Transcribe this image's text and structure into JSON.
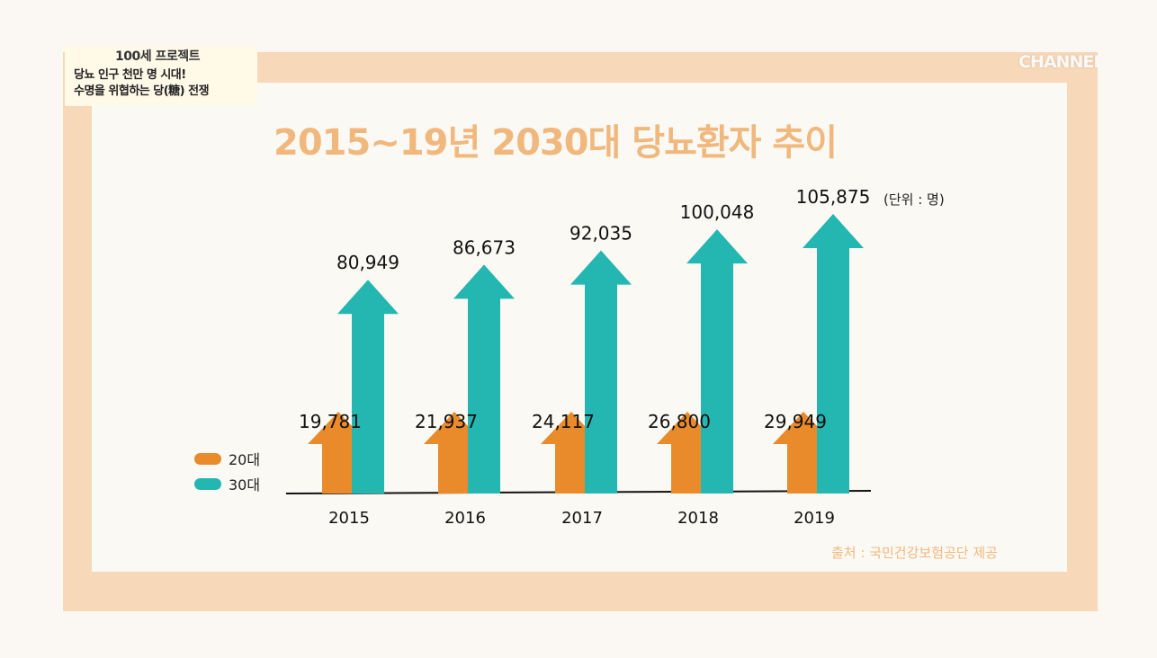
{
  "caption": {
    "program": "100세 프로젝트",
    "line1": "당뇨 인구 천만 명 시대!",
    "line2": "수명을 위협하는 당(糖) 전쟁"
  },
  "logo": "CHANNEL A",
  "colors": {
    "series_20s": "#e98a2b",
    "series_30s": "#24b6b1",
    "title": "#f1b87e",
    "frame": "#f7d8b8"
  },
  "unit_label": "(단위 : 명)",
  "source_label": "출처 : 국민건강보험공단 제공",
  "chart_data": {
    "type": "bar",
    "title": "2015~19년 2030대 당뇨환자 추이",
    "categories": [
      "2015",
      "2016",
      "2017",
      "2018",
      "2019"
    ],
    "series": [
      {
        "name": "20대",
        "values": [
          19781,
          21937,
          24117,
          26800,
          29949
        ]
      },
      {
        "name": "30대",
        "values": [
          80949,
          86673,
          92035,
          100048,
          105875
        ]
      }
    ],
    "value_labels": {
      "20대": [
        "19,781",
        "21,937",
        "24,117",
        "26,800",
        "29,949"
      ],
      "30대": [
        "80,949",
        "86,673",
        "92,035",
        "100,048",
        "105,875"
      ]
    },
    "xlabel": "",
    "ylabel": "",
    "legend_position": "left",
    "mark_style": "arrow"
  }
}
